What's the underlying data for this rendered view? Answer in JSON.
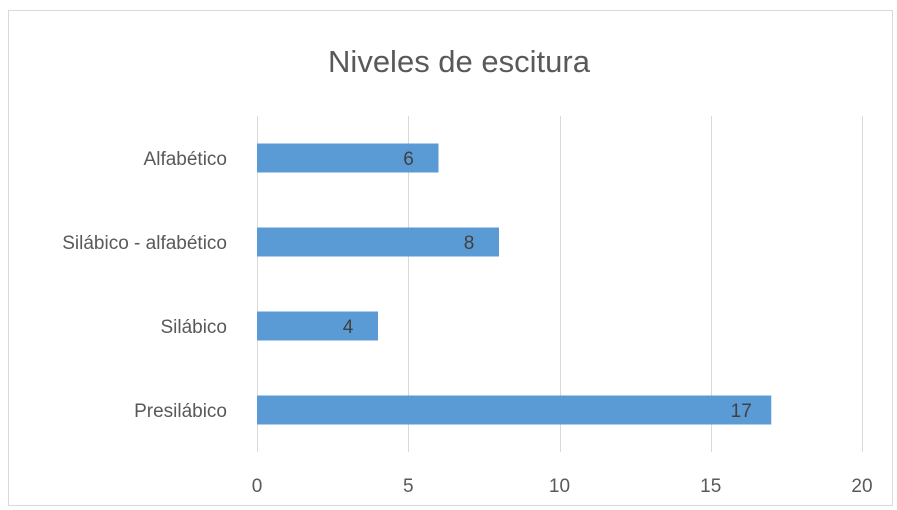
{
  "chart_data": {
    "type": "bar",
    "orientation": "horizontal",
    "title": "Niveles de escitura",
    "xlabel": "",
    "ylabel": "",
    "categories": [
      "Presilábico",
      "Silábico",
      "Silábico - alfabético",
      "Alfabético"
    ],
    "values": [
      17,
      4,
      8,
      6
    ],
    "xlim": [
      0,
      20
    ],
    "ticks": [
      0,
      5,
      10,
      15,
      20
    ],
    "tick_labels": [
      "0",
      "5",
      "10",
      "15",
      "20"
    ],
    "bar_color": "#5b9bd5",
    "grid": true,
    "legend": "none",
    "data_labels": true
  }
}
